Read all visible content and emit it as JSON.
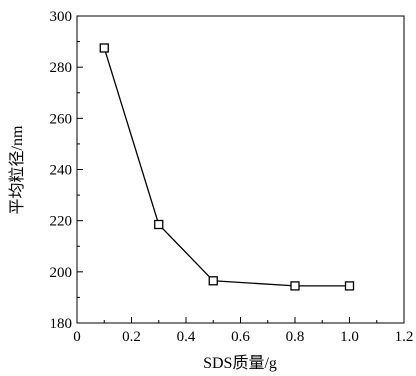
{
  "chart_data": {
    "type": "line",
    "xlabel": "SDS质量/g",
    "ylabel": "平均粒径/nm",
    "xlim": [
      0,
      1.2
    ],
    "ylim": [
      180,
      300
    ],
    "x_ticks": [
      0,
      0.2,
      0.4,
      0.6,
      0.8,
      1.0,
      1.2
    ],
    "x_tick_labels": [
      "0",
      "0.2",
      "0.4",
      "0.6",
      "0.8",
      "1.0",
      "1.2"
    ],
    "y_ticks": [
      180,
      200,
      220,
      240,
      260,
      280,
      300
    ],
    "y_tick_labels": [
      "180",
      "200",
      "220",
      "240",
      "260",
      "280",
      "300"
    ],
    "grid": false,
    "marker": "open-square",
    "series": [
      {
        "x": [
          0.1,
          0.3,
          0.5,
          0.8,
          1.0
        ],
        "y": [
          287.5,
          218.5,
          196.5,
          194.5,
          194.5
        ]
      }
    ],
    "colors": {
      "line": "#000000",
      "marker_fill": "#ffffff"
    }
  }
}
